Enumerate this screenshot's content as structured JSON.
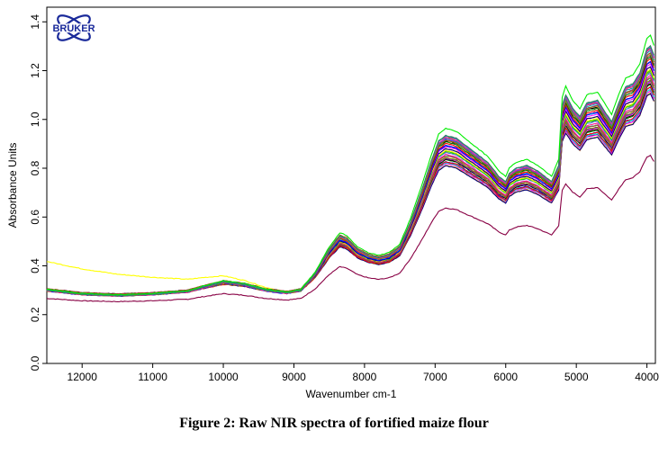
{
  "chart_data": {
    "type": "line",
    "title": "",
    "xlabel": "Wavenumber cm-1",
    "ylabel": "Absorbance Units",
    "xlim": [
      12500,
      3880
    ],
    "ylim": [
      0.0,
      1.46
    ],
    "x_reversed": true,
    "x_ticks": [
      12000,
      11000,
      10000,
      9000,
      8000,
      7000,
      6000,
      5000,
      4000
    ],
    "y_ticks": [
      0.0,
      0.2,
      0.4,
      0.6,
      0.8,
      1.0,
      1.2,
      1.4
    ],
    "y_tick_labels": [
      "0.0",
      "0.2",
      "0.4",
      "0.6",
      "0.8",
      "1.0",
      "1.2",
      "1.4"
    ],
    "grid": false,
    "legend": "none",
    "series_count": 40,
    "mean_spectrum": {
      "x": [
        12500,
        12000,
        11500,
        11000,
        10500,
        10300,
        10000,
        9700,
        9400,
        9100,
        8900,
        8700,
        8500,
        8350,
        8250,
        8100,
        7950,
        7800,
        7650,
        7500,
        7350,
        7200,
        7050,
        6950,
        6850,
        6700,
        6550,
        6400,
        6250,
        6100,
        6000,
        5950,
        5850,
        5700,
        5550,
        5450,
        5350,
        5250,
        5200,
        5150,
        5050,
        4950,
        4850,
        4700,
        4600,
        4500,
        4400,
        4300,
        4200,
        4100,
        4000,
        3950,
        3880
      ],
      "y": [
        0.3,
        0.285,
        0.28,
        0.285,
        0.295,
        0.31,
        0.33,
        0.32,
        0.3,
        0.29,
        0.3,
        0.36,
        0.45,
        0.5,
        0.49,
        0.45,
        0.43,
        0.42,
        0.43,
        0.46,
        0.55,
        0.66,
        0.78,
        0.85,
        0.87,
        0.86,
        0.83,
        0.8,
        0.77,
        0.72,
        0.7,
        0.73,
        0.75,
        0.76,
        0.74,
        0.72,
        0.7,
        0.76,
        0.98,
        1.02,
        0.97,
        0.94,
        0.99,
        1.0,
        0.96,
        0.92,
        0.99,
        1.05,
        1.06,
        1.1,
        1.19,
        1.2,
        1.15
      ]
    },
    "extreme_spectra": [
      {
        "color": "#ffff00",
        "start_y": 0.42,
        "note": "highest at 12500"
      },
      {
        "color": "#00ee00",
        "peak_y_6850": 1.0,
        "note": "top curve"
      },
      {
        "color": "#880044",
        "peak_y_6850": 0.56,
        "note": "bottom curve"
      }
    ],
    "colors": [
      "#00dd00",
      "#ffee00",
      "#ff8800",
      "#000080",
      "#ff00ff",
      "#800040",
      "#00ffff",
      "#0000ff",
      "#ff0000",
      "#008000",
      "#000000",
      "#ff8080",
      "#8000ff",
      "#808000",
      "#00a0a0",
      "#a0522d",
      "#ff1493",
      "#4169e1",
      "#2e8b57",
      "#daa520"
    ]
  },
  "logo": {
    "text": "BRUKER",
    "color": "#1a2a9a"
  },
  "caption": "Figure 2: Raw NIR spectra of fortified maize flour"
}
